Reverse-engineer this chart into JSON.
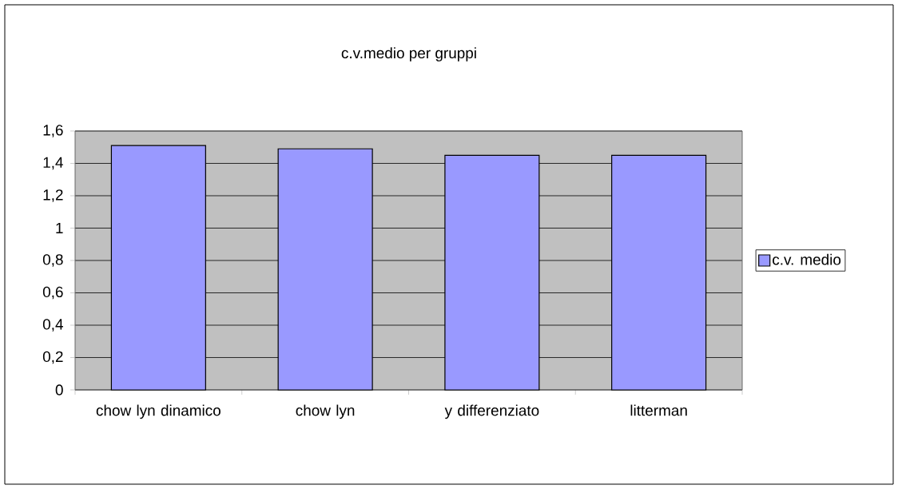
{
  "chart_data": {
    "type": "bar",
    "title": "c.v.medio per gruppi",
    "categories": [
      "chow lyn dinamico",
      "chow lyn",
      "y differenziato",
      "litterman"
    ],
    "series": [
      {
        "name": "c.v. medio",
        "color": "#9999ff",
        "values": [
          1.51,
          1.49,
          1.45,
          1.45
        ]
      }
    ],
    "ylim": [
      0,
      1.6
    ],
    "yticks": [
      0,
      {
        "value": 0.2,
        "label": "0,2"
      },
      {
        "value": 0.4,
        "label": "0,4"
      },
      {
        "value": 0.6,
        "label": "0,6"
      },
      {
        "value": 0.8,
        "label": "0,8"
      },
      1,
      {
        "value": 1.2,
        "label": "1,2"
      },
      {
        "value": 1.4,
        "label": "1,4"
      },
      {
        "value": 1.6,
        "label": "1,6"
      }
    ],
    "grid": "y",
    "legend": "right"
  }
}
